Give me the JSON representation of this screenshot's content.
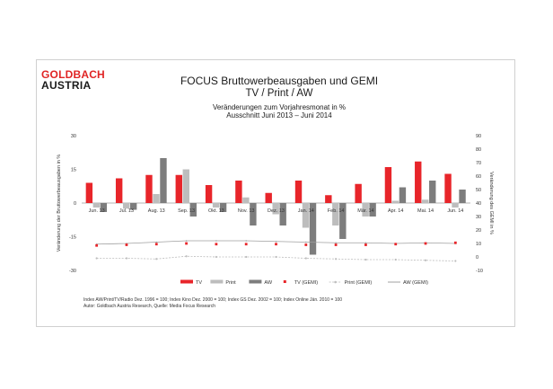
{
  "logo": {
    "line1": "GOLDBACH",
    "line2": "AUSTRIA"
  },
  "header": {
    "title": "FOCUS Bruttowerbeausgaben und GEMI",
    "subtitle": "TV / Print / AW",
    "line3": "Veränderungen zum Vorjahresmonat in %",
    "line4": "Ausschnitt  Juni 2013 –  Juni 2014"
  },
  "colors": {
    "tv": "#e8252a",
    "print": "#bdbdbd",
    "aw": "#7d7d7d",
    "tv_gemi": "#e8252a",
    "print_gemi": "#bdbdbd",
    "aw_gemi": "#a0a0a0"
  },
  "chart_data": {
    "type": "bar",
    "categories": [
      "Jun. 13",
      "Jul. 13",
      "Aug. 13",
      "Sep. 13",
      "Okt. 13",
      "Nov. 13",
      "Dez. 13",
      "Jan. 14",
      "Feb. 14",
      "Mär. 14",
      "Apr. 14",
      "Mai. 14",
      "Jun. 14"
    ],
    "ylabel": "Veränderung der Bruttowerbeausgaben in %",
    "ylabel_right": "Veränderung des GEMI in %",
    "ylim": [
      -30,
      30
    ],
    "yticks": [
      -30,
      -15,
      0,
      15,
      30
    ],
    "ylim_right": [
      -10,
      90
    ],
    "yticks_right": [
      -10,
      0,
      10,
      20,
      30,
      40,
      50,
      60,
      70,
      80,
      90
    ],
    "series": [
      {
        "name": "TV",
        "kind": "bar",
        "axis": "left",
        "values": [
          9,
          11,
          12.5,
          12.5,
          8,
          10,
          4.5,
          10,
          3.5,
          8.5,
          16,
          18.5,
          13
        ]
      },
      {
        "name": "Print",
        "kind": "bar",
        "axis": "left",
        "values": [
          -2,
          -2.5,
          4,
          15,
          -2,
          2.5,
          -5,
          -11,
          -10,
          -6,
          1,
          1.5,
          -2
        ]
      },
      {
        "name": "AW",
        "kind": "bar",
        "axis": "left",
        "values": [
          -4,
          -3,
          20,
          -6,
          -4,
          -10,
          -10,
          -23,
          -16,
          -6,
          7,
          10,
          6
        ]
      },
      {
        "name": "TV (GEMI)",
        "kind": "points",
        "axis": "right",
        "values": [
          8.5,
          9,
          9.5,
          10,
          9.5,
          9.5,
          9.5,
          9,
          9,
          9,
          9.5,
          10,
          10.5
        ]
      },
      {
        "name": "Print (GEMI)",
        "kind": "line",
        "axis": "right",
        "values": [
          -1,
          -1,
          -1.5,
          0.5,
          0,
          0,
          0,
          -1,
          -1.5,
          -2,
          -2,
          -2.5,
          -3
        ]
      },
      {
        "name": "AW (GEMI)",
        "kind": "line",
        "axis": "right",
        "values": [
          9.5,
          10,
          11,
          12,
          12,
          12,
          11.5,
          11,
          10.5,
          10.5,
          10,
          10.5,
          10
        ]
      }
    ],
    "legend": "bottom"
  },
  "footnote": {
    "line1": "Index AW/Print/TV/Radio Dez. 1996 = 100; Index Kino Dez. 2000 = 100; Index GS Dez. 2002 = 100; Index Online  Jän. 2010 = 100",
    "line2": "Autor: Goldbach Austria Research, Quelle: Media Focus Research"
  }
}
